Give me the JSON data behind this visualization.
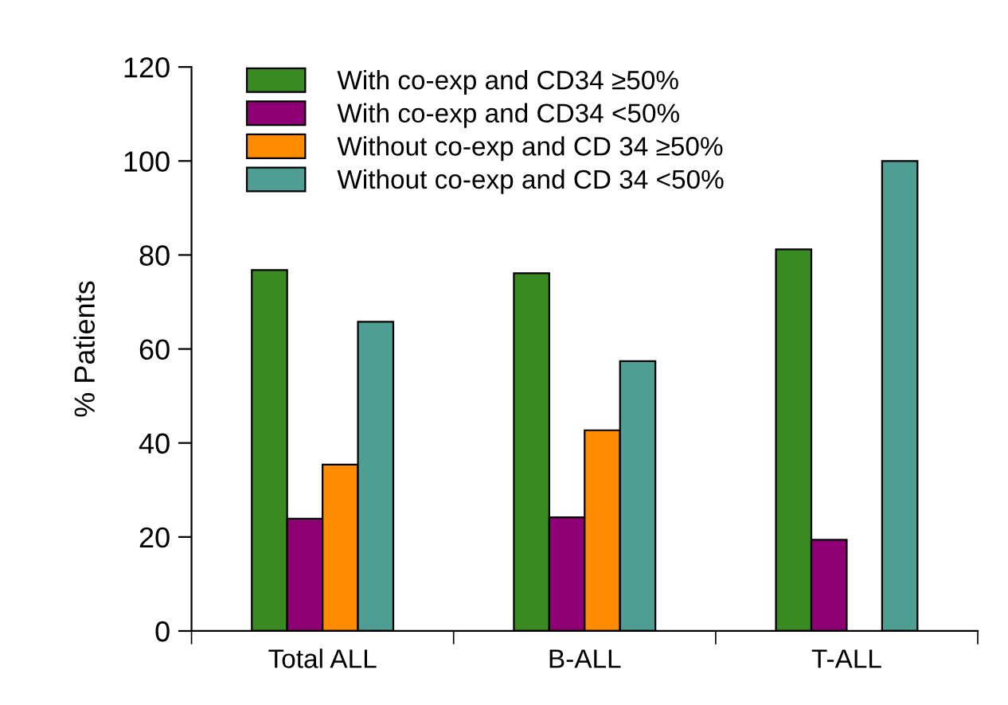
{
  "chart_data": {
    "type": "bar",
    "ylabel": "% Patients",
    "categories": [
      "Total ALL",
      "B-ALL",
      "T-ALL"
    ],
    "series": [
      {
        "name": "With co-exp and CD34 ≥50%",
        "color": "#3a8a22",
        "values": [
          76.8,
          76.1,
          81.2
        ]
      },
      {
        "name": "With co-exp and CD34 <50%",
        "color": "#8e0073",
        "values": [
          23.9,
          24.2,
          19.4
        ]
      },
      {
        "name": "Without co-exp and CD 34 ≥50%",
        "color": "#ff8c00",
        "values": [
          35.4,
          42.7,
          null
        ]
      },
      {
        "name": "Without co-exp and CD 34 <50%",
        "color": "#4f9e94",
        "values": [
          65.8,
          57.4,
          100
        ]
      }
    ],
    "ylim": [
      0,
      120
    ],
    "yticks": [
      0,
      20,
      40,
      60,
      80,
      100,
      120
    ],
    "grid": false,
    "legend": "top left"
  }
}
